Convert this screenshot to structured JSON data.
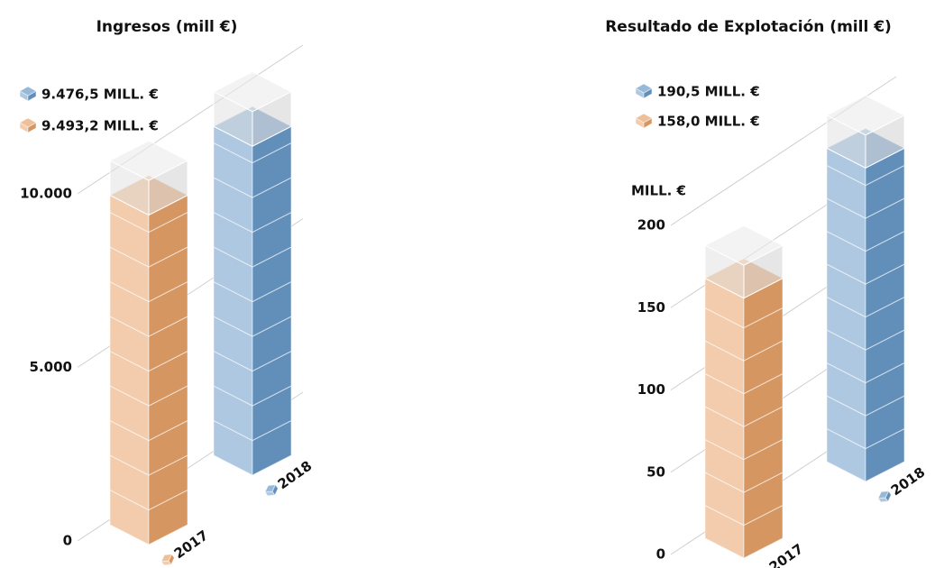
{
  "chart_data": [
    {
      "type": "cube-stack",
      "title": "Ingresos (mill €)",
      "categories": [
        "2017",
        "2018"
      ],
      "values": [
        9493.2,
        9476.5
      ],
      "value_labels": [
        "9.493,2 MILL. €",
        "9.476,5 MILL. €"
      ],
      "colors": [
        "#e8a36a",
        "#6b9bc9"
      ],
      "ylim": [
        0,
        10000
      ],
      "yticks": [
        0,
        {
          "value": 5000,
          "label": "5.000"
        },
        {
          "value": 10000,
          "label": "10.000"
        }
      ]
    },
    {
      "type": "cube-stack",
      "title": "Resultado de Explotación (mill €)",
      "y_label": "MILL. €",
      "categories": [
        "2017",
        "2018"
      ],
      "values": [
        158.0,
        190.5
      ],
      "value_labels": [
        "158,0 MILL. €",
        "190,5 MILL. €"
      ],
      "colors": [
        "#e8a36a",
        "#6b9bc9"
      ],
      "ylim": [
        0,
        200
      ],
      "yticks": [
        0,
        50,
        100,
        150,
        200
      ]
    }
  ]
}
